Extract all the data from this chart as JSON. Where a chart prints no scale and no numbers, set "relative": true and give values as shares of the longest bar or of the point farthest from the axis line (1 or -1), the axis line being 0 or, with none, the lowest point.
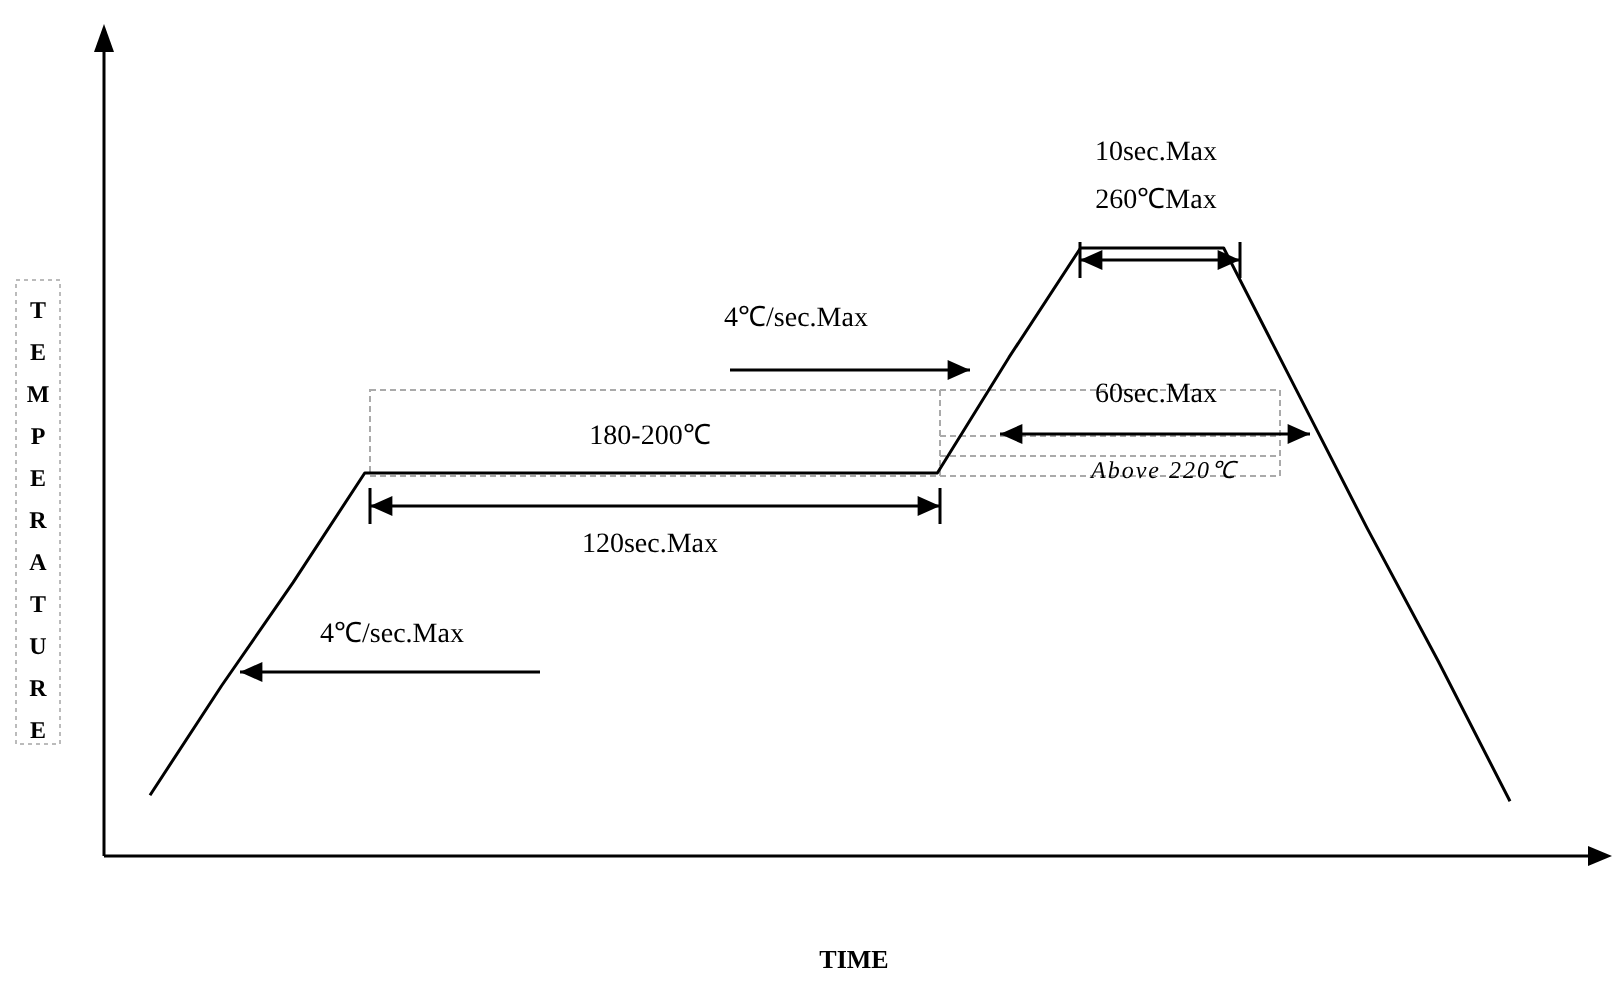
{
  "chart_data": {
    "type": "line",
    "relative": true,
    "xlabel": "TIME",
    "ylabel": "TEMPERATURE",
    "color": "#000000",
    "categories": [
      null,
      null,
      null,
      null,
      null,
      null,
      null,
      null,
      null,
      null,
      null,
      null,
      null,
      null,
      null,
      null,
      null,
      null,
      null,
      null
    ],
    "values": [
      0.1,
      0.28,
      0.45,
      0.63,
      0.63,
      0.63,
      0.63,
      0.63,
      0.63,
      0.63,
      0.63,
      0.63,
      0.82,
      1,
      1,
      1,
      0.77,
      0.54,
      0.32,
      0.09
    ],
    "annotations": [
      "10sec.Max",
      "260℃Max",
      "4℃/sec.Max",
      "60sec.Max",
      "Above 220℃",
      "180-200℃",
      "120sec.Max",
      "4℃/sec.Max"
    ]
  }
}
